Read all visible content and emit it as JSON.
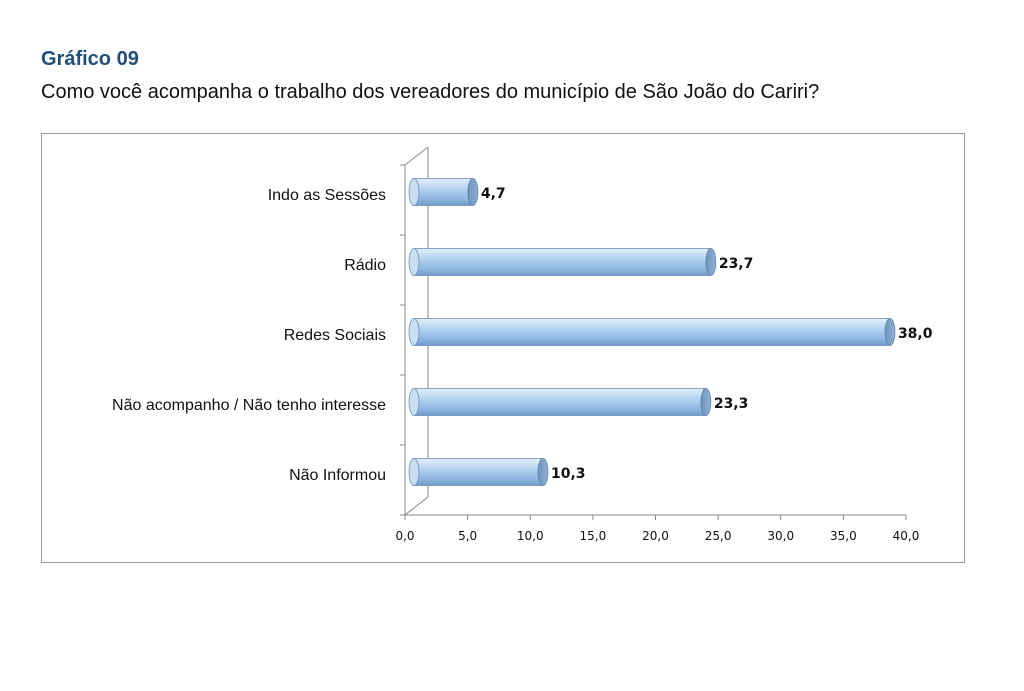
{
  "header": {
    "label": "Gráfico 09",
    "question": "Como você acompanha o trabalho dos vereadores do município de São João do Cariri?"
  },
  "chart_data": {
    "type": "bar",
    "orientation": "horizontal",
    "style": "3d-cylinder",
    "categories": [
      "Indo as Sessões",
      "Rádio",
      "Redes Sociais",
      "Não acompanho / Não tenho interesse",
      "Não Informou"
    ],
    "values": [
      4.7,
      23.7,
      38.0,
      23.3,
      10.3
    ],
    "value_labels": [
      "4,7",
      "23,7",
      "38,0",
      "23,3",
      "10,3"
    ],
    "xticks": [
      0,
      5,
      10,
      15,
      20,
      25,
      30,
      35,
      40
    ],
    "xtick_labels": [
      "0,0",
      "5,0",
      "10,0",
      "15,0",
      "20,0",
      "25,0",
      "30,0",
      "35,0",
      "40,0"
    ],
    "xlim": [
      0,
      40
    ],
    "grid": false,
    "legend": "none",
    "bar_color": "#9ec3ea"
  }
}
